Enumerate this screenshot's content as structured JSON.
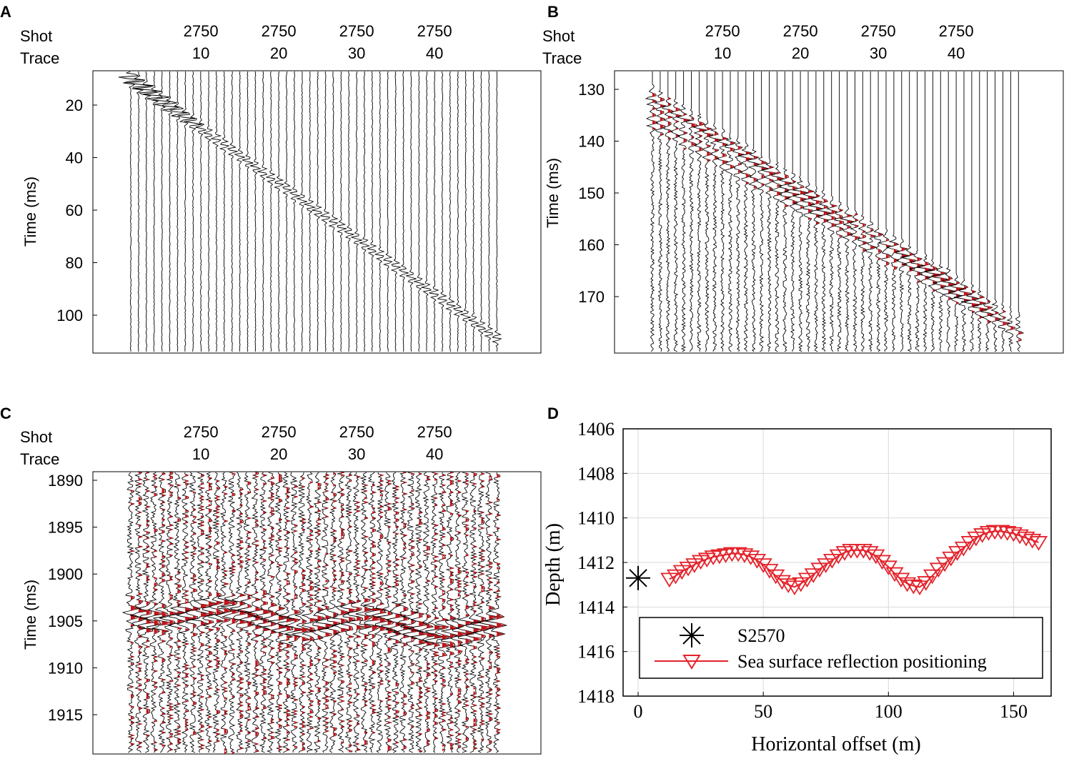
{
  "panels": {
    "A": {
      "label": "A"
    },
    "B": {
      "label": "B"
    },
    "C": {
      "label": "C"
    },
    "D": {
      "label": "D"
    }
  },
  "seismic_header": {
    "shot_label": "Shot",
    "trace_label": "Trace",
    "shot_values": [
      "2750",
      "2750",
      "2750",
      "2750"
    ],
    "trace_values": [
      "10",
      "20",
      "30",
      "40"
    ]
  },
  "colors": {
    "trace": "#000000",
    "fill": "#c0151b",
    "red_line": "#e4232b",
    "grid": "#d9d9d9"
  },
  "chart_data": [
    {
      "panel": "A",
      "type": "seismic-gather",
      "ylabel": "Time (ms)",
      "yticks": [
        "20",
        "40",
        "60",
        "80",
        "100"
      ],
      "ytick_values": [
        20,
        40,
        60,
        80,
        100
      ],
      "ylim": [
        7,
        115
      ],
      "trace_count": 48,
      "xticks": [
        10,
        20,
        30,
        40
      ],
      "event": "direct arrival, time increasing linearly with trace number from about 10 ms to about 110 ms"
    },
    {
      "panel": "B",
      "type": "seismic-gather",
      "ylabel": "Time (ms)",
      "yticks": [
        "130",
        "140",
        "150",
        "160",
        "170"
      ],
      "ytick_values": [
        130,
        140,
        150,
        160,
        170
      ],
      "ylim": [
        127,
        180
      ],
      "trace_count": 48,
      "xticks": [
        10,
        20,
        30,
        40
      ],
      "event": "reflections from about 132 ms to about 176 ms across traces"
    },
    {
      "panel": "C",
      "type": "seismic-gather",
      "ylabel": "Time (ms)",
      "yticks": [
        "1890",
        "1895",
        "1900",
        "1905",
        "1910",
        "1915"
      ],
      "ytick_values": [
        1890,
        1895,
        1900,
        1905,
        1910,
        1915
      ],
      "ylim": [
        1889,
        1918
      ],
      "trace_count": 48,
      "xticks": [
        10,
        20,
        30,
        40
      ],
      "event": "sea surface reflection near 1904-1908 ms"
    },
    {
      "panel": "D",
      "type": "line",
      "xlabel": "Horizontal offset (m)",
      "ylabel": "Depth (m)",
      "xlim": [
        -6,
        165
      ],
      "ylim": [
        1418,
        1406
      ],
      "xticks": [
        "0",
        "50",
        "100",
        "150"
      ],
      "xtick_values": [
        0,
        50,
        100,
        150
      ],
      "yticks": [
        "1406",
        "1408",
        "1410",
        "1412",
        "1414",
        "1416",
        "1418"
      ],
      "ytick_values": [
        1406,
        1408,
        1410,
        1412,
        1414,
        1416,
        1418
      ],
      "grid": true,
      "legend_position": "bottom",
      "series": [
        {
          "name": "S2570",
          "marker": "asterisk",
          "x": [
            0
          ],
          "y": [
            1412.7
          ]
        },
        {
          "name": "Sea surface reflection positioning",
          "marker": "triangle-down",
          "x": [
            12.5,
            15,
            17.5,
            20,
            22.5,
            25,
            27.5,
            30,
            32.5,
            35,
            37.5,
            40,
            42.5,
            45,
            47.5,
            50,
            52.5,
            55,
            57.5,
            60,
            62.5,
            65,
            67.5,
            70,
            72.5,
            75,
            77.5,
            80,
            82.5,
            85,
            87.5,
            90,
            92.5,
            95,
            97.5,
            100,
            102.5,
            105,
            107.5,
            110,
            112.5,
            115,
            117.5,
            120,
            122.5,
            125,
            127.5,
            130,
            132.5,
            135,
            137.5,
            140,
            142.5,
            145,
            147.5,
            150,
            152.5,
            155,
            157.5,
            160
          ],
          "y": [
            1412.75,
            1412.6,
            1412.4,
            1412.25,
            1412.1,
            1411.95,
            1411.85,
            1411.75,
            1411.7,
            1411.65,
            1411.6,
            1411.6,
            1411.65,
            1411.75,
            1411.9,
            1412.1,
            1412.35,
            1412.6,
            1412.85,
            1413.0,
            1413.1,
            1412.95,
            1412.75,
            1412.55,
            1412.3,
            1412.1,
            1411.9,
            1411.7,
            1411.55,
            1411.45,
            1411.45,
            1411.45,
            1411.55,
            1411.7,
            1411.95,
            1412.2,
            1412.5,
            1412.75,
            1412.95,
            1413.05,
            1413.1,
            1412.9,
            1412.6,
            1412.3,
            1412.05,
            1411.8,
            1411.55,
            1411.35,
            1411.1,
            1410.9,
            1410.75,
            1410.65,
            1410.6,
            1410.6,
            1410.65,
            1410.7,
            1410.8,
            1410.9,
            1411.0,
            1411.1
          ]
        }
      ]
    }
  ]
}
